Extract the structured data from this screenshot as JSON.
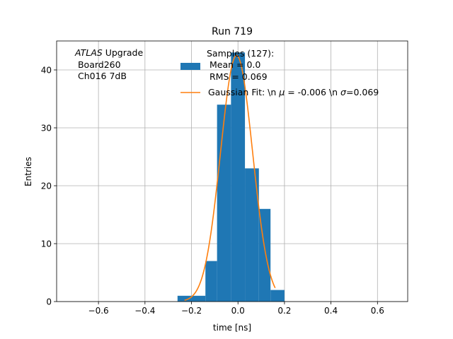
{
  "chart_data": {
    "type": "bar",
    "title": "Run 719",
    "xlabel": "time [ns]",
    "ylabel": "Entries",
    "xlim": [
      -0.78,
      0.73
    ],
    "ylim": [
      0,
      45
    ],
    "grid": true,
    "xticks": [
      -0.6,
      -0.4,
      -0.2,
      0.0,
      0.2,
      0.4,
      0.6
    ],
    "xtick_labels": [
      "−0.6",
      "−0.4",
      "−0.2",
      "0.0",
      "0.2",
      "0.4",
      "0.6"
    ],
    "yticks": [
      0,
      10,
      20,
      30,
      40
    ],
    "ytick_labels": [
      "0",
      "10",
      "20",
      "30",
      "40"
    ],
    "histogram": {
      "bin_edges": [
        -0.26,
        -0.2,
        -0.14,
        -0.09,
        -0.03,
        0.03,
        0.09,
        0.14,
        0.2
      ],
      "counts": [
        1,
        1,
        7,
        34,
        43,
        23,
        16,
        2
      ]
    },
    "gaussian_fit": {
      "mu": -0.006,
      "sigma": 0.069,
      "amplitude": 42.5,
      "x_range": [
        -0.23,
        0.16
      ]
    },
    "annotation": {
      "experiment": "ATLAS",
      "line1_rest": " Upgrade",
      "line2": " Board260",
      "line3": " Ch016 7dB"
    },
    "legend": {
      "location": "top",
      "hist_entry": [
        "Samples (127):",
        " Mean = 0.0",
        " RMS = 0.069"
      ],
      "fit_entry_parts": [
        "Gaussian Fit: \\n ",
        "μ",
        " = -0.006 \\n ",
        "σ",
        "=0.069"
      ]
    },
    "colors": {
      "histogram": "#1f77b4",
      "fit": "#ff7f0e",
      "grid": "#b0b0b0"
    }
  }
}
